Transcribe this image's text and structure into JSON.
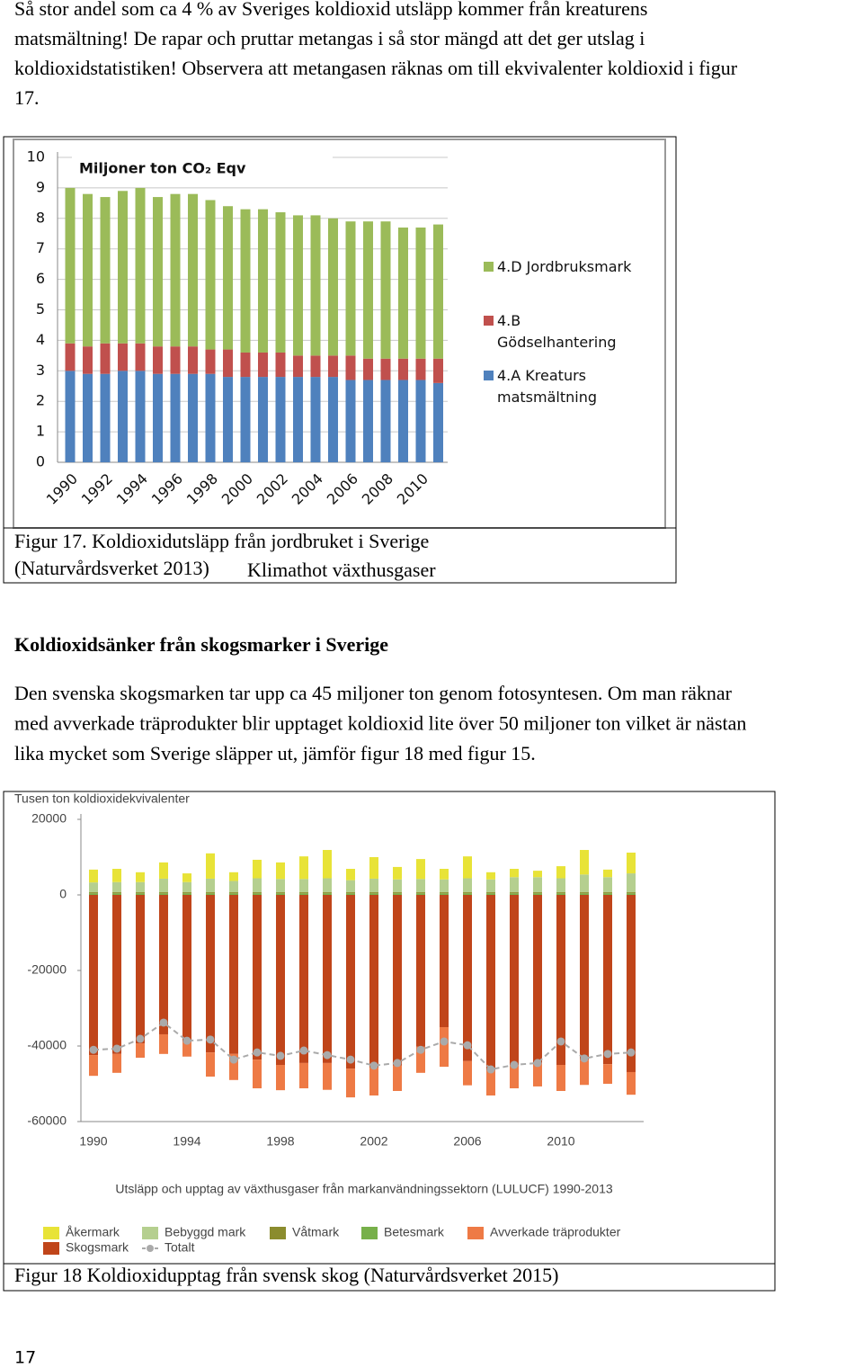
{
  "document": {
    "intro": [
      "Så stor andel som ca 4 % av Sveriges koldioxid utsläpp kommer från kreaturens",
      "matsmältning! De rapar och pruttar metangas i så stor mängd att det ger utslag i",
      "koldioxidstatistiken! Observera att metangasen räknas om till ekvivalenter koldioxid i figur",
      "17."
    ],
    "figure17_caption": [
      "Figur 17.  Koldioxidutsläpp från jordbruket i Sverige",
      "(Naturvårdsverket 2013)"
    ],
    "figure17_source": "Klimathot växthusgaser",
    "section_heading": "Koldioxidsänker från skogsmarker i Sverige",
    "body": [
      "Den svenska skogsmarken tar upp ca 45 miljoner ton genom fotosyntesen. Om man räknar",
      "med avverkade träprodukter blir upptaget koldioxid lite över 50 miljoner ton vilket är nästan",
      "lika mycket som Sverige släpper ut, jämför figur 18 med figur 15."
    ],
    "figure18_caption": "Figur 18 Koldioxidupptag från svensk skog (Naturvårdsverket 2015)",
    "page_number": "17"
  },
  "chart_data": [
    {
      "type": "bar",
      "stacked": true,
      "title": "Miljoner ton CO₂ Eqv",
      "categories": [
        "1990",
        null,
        "1992",
        null,
        "1994",
        null,
        "1996",
        null,
        "1998",
        null,
        "2000",
        null,
        "2002",
        null,
        "2004",
        null,
        "2006",
        null,
        "2008",
        null,
        "2010",
        null
      ],
      "series": [
        {
          "name": "4.A Kreaturs matsmältning",
          "color": "#4f81bd",
          "values": [
            3.0,
            2.9,
            2.9,
            3.0,
            3.0,
            2.9,
            2.9,
            2.9,
            2.9,
            2.8,
            2.8,
            2.8,
            2.8,
            2.8,
            2.8,
            2.8,
            2.7,
            2.7,
            2.7,
            2.7,
            2.7,
            2.6
          ]
        },
        {
          "name": "4.B Gödselhantering",
          "color": "#c0504d",
          "values": [
            0.9,
            0.9,
            1.0,
            0.9,
            0.9,
            0.9,
            0.9,
            0.9,
            0.8,
            0.9,
            0.8,
            0.8,
            0.8,
            0.7,
            0.7,
            0.7,
            0.8,
            0.7,
            0.7,
            0.7,
            0.7,
            0.8
          ]
        },
        {
          "name": "4.D Jordbruksmark",
          "color": "#9bbb59",
          "values": [
            5.1,
            5.0,
            4.8,
            5.0,
            5.1,
            4.9,
            5.0,
            5.0,
            4.9,
            4.7,
            4.7,
            4.7,
            4.6,
            4.6,
            4.6,
            4.5,
            4.4,
            4.5,
            4.5,
            4.3,
            4.3,
            4.4
          ]
        }
      ],
      "ylim": [
        0,
        10
      ],
      "yticks": [
        0,
        1,
        2,
        3,
        4,
        5,
        6,
        7,
        8,
        9,
        10
      ],
      "grid": true,
      "legend": "right"
    },
    {
      "type": "bar",
      "stacked": true,
      "title": "Utsläpp och upptag av växthusgaser från markanvändningssektorn (LULUCF) 1990-2013",
      "y_label": "Tusen ton koldioxidekvivalenter",
      "categories": [
        "1990",
        null,
        null,
        null,
        "1994",
        null,
        null,
        null,
        "1998",
        null,
        null,
        null,
        "2002",
        null,
        null,
        null,
        "2006",
        null,
        null,
        null,
        "2010",
        null,
        null,
        null
      ],
      "series": [
        {
          "name": "Åkermark",
          "color": "#e8e337",
          "values": [
            3400,
            3500,
            2600,
            4300,
            2300,
            6700,
            2300,
            4900,
            4400,
            6000,
            7500,
            3000,
            5700,
            3300,
            5300,
            2800,
            5800,
            1900,
            2200,
            1700,
            3200,
            6500,
            2000,
            5500
          ]
        },
        {
          "name": "Bebyggd mark",
          "color": "#b5cf8f",
          "values": [
            2600,
            2700,
            2700,
            3600,
            2700,
            3600,
            3000,
            3700,
            3500,
            3500,
            3700,
            3200,
            3600,
            3400,
            3500,
            3400,
            3700,
            3400,
            4000,
            4000,
            3700,
            4700,
            4000,
            5000
          ]
        },
        {
          "name": "Våtmark",
          "color": "#8b8c2e",
          "values": [
            300,
            300,
            300,
            300,
            300,
            300,
            300,
            300,
            300,
            300,
            300,
            300,
            300,
            300,
            300,
            300,
            300,
            300,
            300,
            300,
            300,
            300,
            300,
            300
          ]
        },
        {
          "name": "Betesmark",
          "color": "#77b04a",
          "values": [
            400,
            400,
            400,
            400,
            400,
            400,
            400,
            400,
            400,
            400,
            400,
            400,
            400,
            400,
            400,
            400,
            400,
            400,
            400,
            400,
            400,
            400,
            400,
            400
          ]
        },
        {
          "name": "Avverkade träprodukter",
          "color": "#ee7a45",
          "values": [
            -5500,
            -5000,
            -3800,
            -5200,
            -4000,
            -6400,
            -6900,
            -7600,
            -6700,
            -6700,
            -7100,
            -7600,
            -7400,
            -6700,
            -6900,
            -10500,
            -6400,
            -6700,
            -6200,
            -6200,
            -6900,
            -6700,
            -5200,
            -6000
          ]
        },
        {
          "name": "Skogsmark",
          "color": "#c0451a",
          "values": [
            -42400,
            -42100,
            -39300,
            -36900,
            -38800,
            -41700,
            -42100,
            -43600,
            -45000,
            -44500,
            -44500,
            -46000,
            -45700,
            -45200,
            -40200,
            -35000,
            -44000,
            -46400,
            -45000,
            -44500,
            -45000,
            -43600,
            -44800,
            -46900
          ]
        },
        {
          "name": "Totalt",
          "color": "#aaaaaa",
          "type": "line",
          "values": [
            -41000,
            -40700,
            -38100,
            -33800,
            -38600,
            -38300,
            -43600,
            -41700,
            -42600,
            -41200,
            -42400,
            -43600,
            -45200,
            -44500,
            -41000,
            -38800,
            -39800,
            -46200,
            -45000,
            -44500,
            -38800,
            -43300,
            -42100,
            -41700
          ]
        }
      ],
      "ylim": [
        -60000,
        20000
      ],
      "yticks": [
        20000,
        0,
        -20000,
        -40000,
        -60000
      ],
      "grid": false,
      "legend": "bottom"
    }
  ]
}
